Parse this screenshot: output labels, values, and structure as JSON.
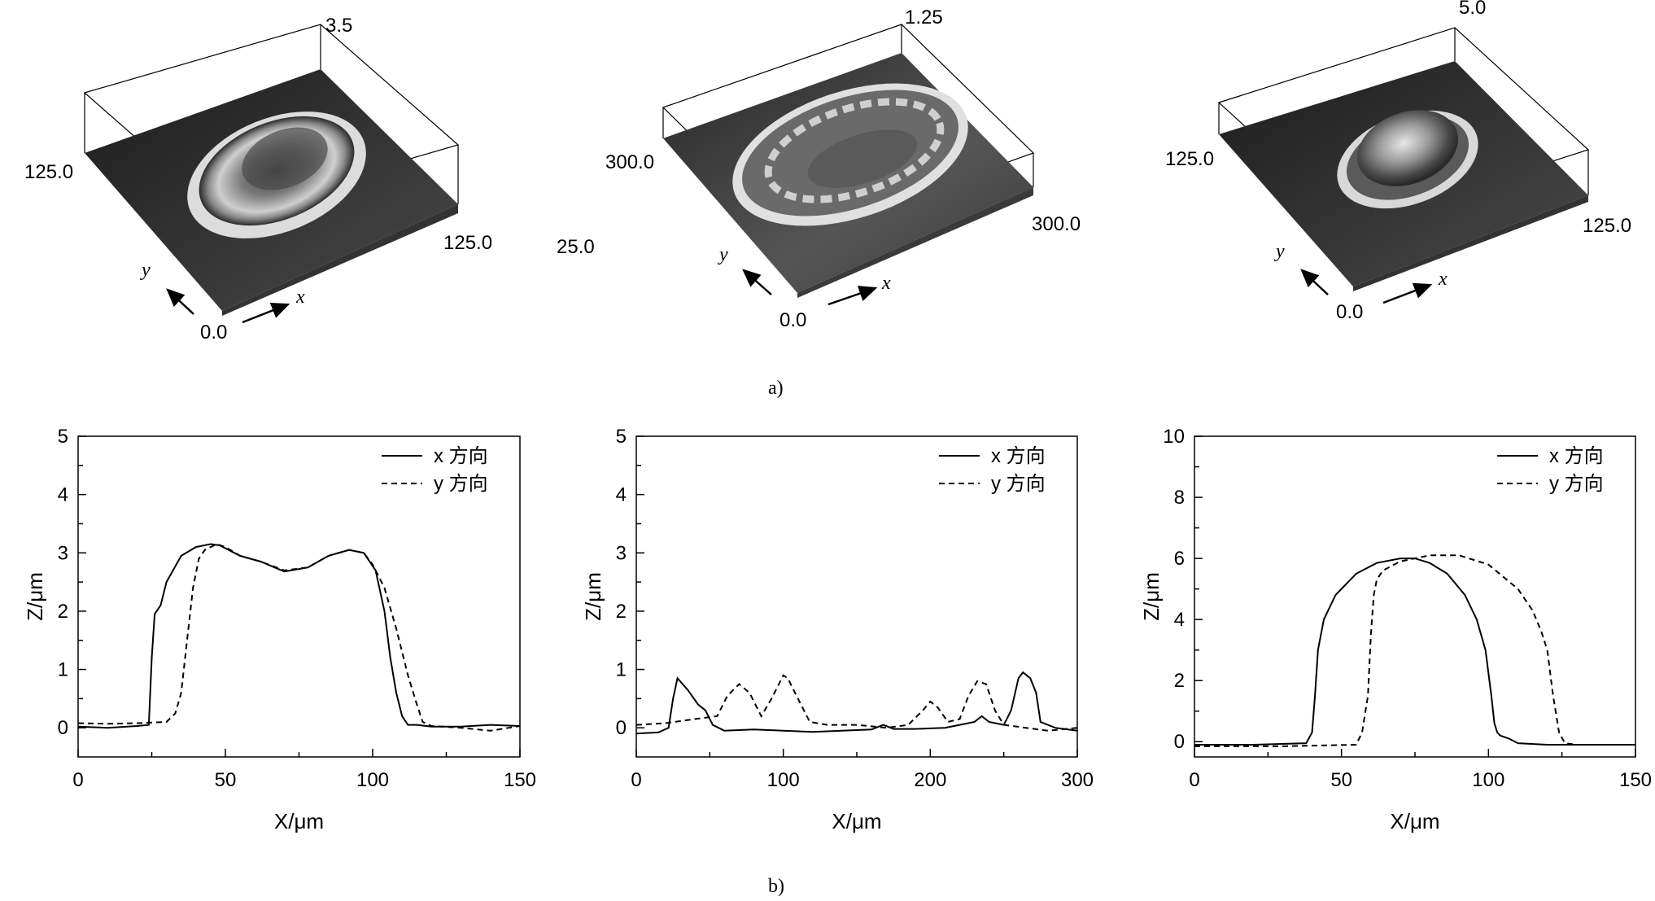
{
  "figure": {
    "caption_a": "a)",
    "caption_b": "b)"
  },
  "surfaces": [
    {
      "z_max": "3.5",
      "y_max": "125.0",
      "x_max": "125.0",
      "origin": "0.0",
      "x_axis": "x",
      "y_axis": "y"
    },
    {
      "z_max": "1.25",
      "y_max": "300.0",
      "x_max": "300.0",
      "origin": "0.0",
      "x_axis": "x",
      "y_axis": "y",
      "extra_label": "25.0"
    },
    {
      "z_max": "5.0",
      "y_max": "125.0",
      "x_max": "125.0",
      "origin": "0.0",
      "x_axis": "x",
      "y_axis": "y"
    }
  ],
  "chart_data": [
    {
      "type": "line",
      "xlabel": "X/μm",
      "ylabel": "Z/μm",
      "xlim": [
        0,
        150
      ],
      "ylim": [
        -0.5,
        5
      ],
      "xticks": [
        0,
        50,
        100,
        150
      ],
      "yticks": [
        0,
        1,
        2,
        3,
        4,
        5
      ],
      "legend_position": "top-right",
      "grid": false,
      "series": [
        {
          "name": "x 方向",
          "style": "solid",
          "x": [
            0,
            10,
            20,
            24,
            25,
            26,
            28,
            30,
            35,
            40,
            45,
            48,
            55,
            62,
            70,
            78,
            85,
            92,
            97,
            101,
            104,
            106,
            108,
            110,
            112,
            115,
            120,
            130,
            140,
            150
          ],
          "y": [
            0.02,
            0.0,
            0.03,
            0.05,
            1.2,
            1.95,
            2.1,
            2.5,
            2.95,
            3.1,
            3.15,
            3.13,
            2.95,
            2.85,
            2.68,
            2.75,
            2.95,
            3.05,
            3.0,
            2.7,
            2.0,
            1.2,
            0.6,
            0.2,
            0.05,
            0.05,
            0.02,
            0.02,
            0.05,
            0.03
          ]
        },
        {
          "name": "y 方向",
          "style": "dashed",
          "x": [
            0,
            10,
            20,
            30,
            33,
            35,
            37,
            39,
            41,
            43,
            47,
            50,
            55,
            62,
            70,
            78,
            85,
            92,
            97,
            100,
            104,
            108,
            112,
            115,
            117,
            120,
            130,
            140,
            150
          ],
          "y": [
            0.08,
            0.07,
            0.08,
            0.1,
            0.25,
            0.6,
            1.5,
            2.4,
            2.9,
            3.05,
            3.15,
            3.1,
            2.95,
            2.85,
            2.7,
            2.75,
            2.95,
            3.05,
            3.0,
            2.8,
            2.4,
            1.7,
            0.9,
            0.4,
            0.1,
            0.03,
            0.0,
            -0.05,
            0.03
          ]
        }
      ]
    },
    {
      "type": "line",
      "xlabel": "X/μm",
      "ylabel": "Z/μm",
      "xlim": [
        0,
        300
      ],
      "ylim": [
        -0.5,
        5
      ],
      "xticks": [
        0,
        100,
        200,
        300
      ],
      "yticks": [
        0,
        1,
        2,
        3,
        4,
        5
      ],
      "legend_position": "top-right",
      "grid": false,
      "series": [
        {
          "name": "x 方向",
          "style": "solid",
          "x": [
            0,
            15,
            22,
            25,
            28,
            35,
            42,
            47,
            52,
            60,
            80,
            100,
            120,
            140,
            160,
            168,
            175,
            190,
            210,
            220,
            230,
            235,
            240,
            250,
            255,
            260,
            263,
            268,
            272,
            275,
            285,
            300
          ],
          "y": [
            -0.1,
            -0.08,
            0.0,
            0.5,
            0.85,
            0.65,
            0.4,
            0.3,
            0.05,
            -0.05,
            -0.03,
            -0.05,
            -0.07,
            -0.05,
            -0.03,
            0.05,
            -0.02,
            -0.02,
            0.0,
            0.05,
            0.1,
            0.2,
            0.1,
            0.05,
            0.3,
            0.85,
            0.95,
            0.85,
            0.6,
            0.1,
            0.0,
            -0.05
          ]
        },
        {
          "name": "y 方向",
          "style": "dashed",
          "x": [
            0,
            20,
            40,
            55,
            62,
            70,
            77,
            85,
            92,
            100,
            103,
            110,
            118,
            130,
            150,
            170,
            185,
            195,
            200,
            205,
            212,
            220,
            226,
            232,
            238,
            244,
            250,
            265,
            280,
            300
          ],
          "y": [
            0.05,
            0.08,
            0.15,
            0.2,
            0.55,
            0.75,
            0.6,
            0.2,
            0.5,
            0.9,
            0.85,
            0.5,
            0.1,
            0.05,
            0.05,
            0.0,
            0.05,
            0.3,
            0.45,
            0.35,
            0.1,
            0.15,
            0.55,
            0.8,
            0.75,
            0.3,
            0.05,
            0.0,
            -0.05,
            0.0
          ]
        }
      ]
    },
    {
      "type": "line",
      "xlabel": "X/μm",
      "ylabel": "Z/μm",
      "xlim": [
        0,
        150
      ],
      "ylim": [
        -0.5,
        10
      ],
      "xticks": [
        0,
        50,
        100,
        150
      ],
      "yticks": [
        0,
        2,
        4,
        6,
        8,
        10
      ],
      "legend_position": "top-right",
      "grid": false,
      "series": [
        {
          "name": "x 方向",
          "style": "solid",
          "x": [
            0,
            20,
            38,
            40,
            41,
            42,
            44,
            48,
            55,
            62,
            70,
            75,
            80,
            86,
            92,
            96,
            99,
            101,
            102,
            103,
            104,
            107,
            110,
            120,
            150
          ],
          "y": [
            -0.1,
            -0.1,
            -0.05,
            0.3,
            1.5,
            3.0,
            4.0,
            4.8,
            5.5,
            5.85,
            6.0,
            6.0,
            5.85,
            5.5,
            4.8,
            4.0,
            3.0,
            1.5,
            0.6,
            0.3,
            0.2,
            0.1,
            -0.05,
            -0.1,
            -0.1
          ]
        },
        {
          "name": "y 方向",
          "style": "dashed",
          "x": [
            0,
            30,
            55,
            57,
            59,
            60,
            61,
            62,
            64,
            70,
            80,
            90,
            100,
            110,
            115,
            118,
            120,
            122,
            124,
            126,
            130,
            150
          ],
          "y": [
            -0.15,
            -0.15,
            -0.1,
            0.3,
            1.5,
            3.5,
            4.8,
            5.3,
            5.6,
            5.9,
            6.1,
            6.1,
            5.8,
            5.0,
            4.3,
            3.6,
            3.0,
            1.5,
            0.3,
            -0.05,
            -0.1,
            -0.1
          ]
        }
      ]
    }
  ]
}
